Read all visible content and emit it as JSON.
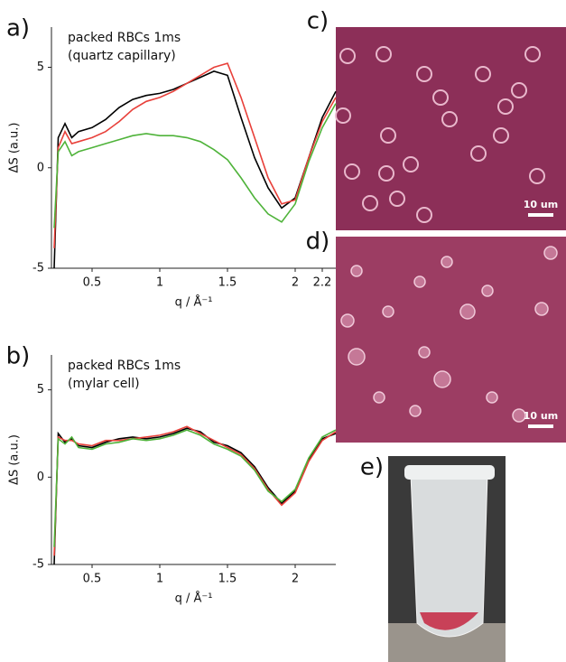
{
  "chart_data": [
    {
      "type": "line",
      "panel_label": "a)",
      "title": "packed RBCs 1ms",
      "subtitle": "(quartz capillary)",
      "x_label": "q / Å⁻¹",
      "y_label": "ΔS (a.u.)",
      "x": [
        0.22,
        0.25,
        0.3,
        0.35,
        0.4,
        0.5,
        0.6,
        0.7,
        0.8,
        0.9,
        1.0,
        1.1,
        1.2,
        1.3,
        1.4,
        1.5,
        1.6,
        1.7,
        1.8,
        1.9,
        2.0,
        2.1,
        2.2,
        2.3
      ],
      "series": [
        {
          "color": "#000000",
          "values": [
            -5,
            1.5,
            2.2,
            1.5,
            1.8,
            2.0,
            2.4,
            3.0,
            3.4,
            3.6,
            3.7,
            3.9,
            4.2,
            4.5,
            4.8,
            4.6,
            2.5,
            0.5,
            -1.0,
            -2.0,
            -1.5,
            0.5,
            2.5,
            3.8
          ]
        },
        {
          "color": "#e8403a",
          "values": [
            -4,
            1.0,
            1.8,
            1.2,
            1.3,
            1.5,
            1.8,
            2.3,
            2.9,
            3.3,
            3.5,
            3.8,
            4.2,
            4.6,
            5.0,
            5.2,
            3.5,
            1.5,
            -0.5,
            -1.8,
            -1.6,
            0.5,
            2.3,
            3.5
          ]
        },
        {
          "color": "#4fb33a",
          "values": [
            -3,
            0.8,
            1.3,
            0.6,
            0.8,
            1.0,
            1.2,
            1.4,
            1.6,
            1.7,
            1.6,
            1.6,
            1.5,
            1.3,
            0.9,
            0.4,
            -0.5,
            -1.5,
            -2.3,
            -2.7,
            -1.8,
            0.3,
            2.0,
            3.2
          ]
        }
      ],
      "xlim": [
        0.2,
        2.3
      ],
      "xticks": [
        0.5,
        1.0,
        1.5,
        2.0,
        2.2
      ],
      "ylim": [
        -5,
        7
      ],
      "yticks": [
        -5,
        0,
        5
      ]
    },
    {
      "type": "line",
      "panel_label": "b)",
      "title": "packed RBCs 1ms",
      "subtitle": "(mylar cell)",
      "x_label": "q / Å⁻¹",
      "y_label": "ΔS (a.u.)",
      "x": [
        0.22,
        0.25,
        0.3,
        0.35,
        0.4,
        0.5,
        0.6,
        0.7,
        0.8,
        0.9,
        1.0,
        1.1,
        1.2,
        1.3,
        1.4,
        1.5,
        1.6,
        1.7,
        1.8,
        1.9,
        2.0,
        2.1,
        2.2,
        2.3
      ],
      "series": [
        {
          "color": "#000000",
          "values": [
            -5,
            2.5,
            2.0,
            2.2,
            1.8,
            1.7,
            2.0,
            2.2,
            2.3,
            2.2,
            2.3,
            2.5,
            2.8,
            2.6,
            2.0,
            1.8,
            1.4,
            0.6,
            -0.6,
            -1.5,
            -0.8,
            1.0,
            2.2,
            2.5
          ]
        },
        {
          "color": "#e8403a",
          "values": [
            -4.5,
            2.3,
            2.1,
            2.1,
            1.9,
            1.8,
            2.1,
            2.1,
            2.2,
            2.3,
            2.4,
            2.6,
            2.9,
            2.5,
            2.1,
            1.7,
            1.3,
            0.5,
            -0.7,
            -1.6,
            -0.9,
            0.9,
            2.1,
            2.6
          ]
        },
        {
          "color": "#4fb33a",
          "values": [
            -4,
            2.2,
            1.9,
            2.3,
            1.7,
            1.6,
            1.9,
            2.0,
            2.2,
            2.1,
            2.2,
            2.4,
            2.7,
            2.4,
            1.9,
            1.6,
            1.2,
            0.4,
            -0.8,
            -1.4,
            -0.7,
            1.1,
            2.3,
            2.7
          ]
        }
      ],
      "xlim": [
        0.2,
        2.3
      ],
      "xticks": [
        0.5,
        1.0,
        1.5,
        2.0
      ],
      "ylim": [
        -5,
        7
      ],
      "yticks": [
        -5,
        0,
        5
      ]
    }
  ],
  "images": [
    {
      "panel_label": "c)",
      "scale_bar": "10 um"
    },
    {
      "panel_label": "d)",
      "scale_bar": "10 um"
    },
    {
      "panel_label": "e)"
    }
  ]
}
